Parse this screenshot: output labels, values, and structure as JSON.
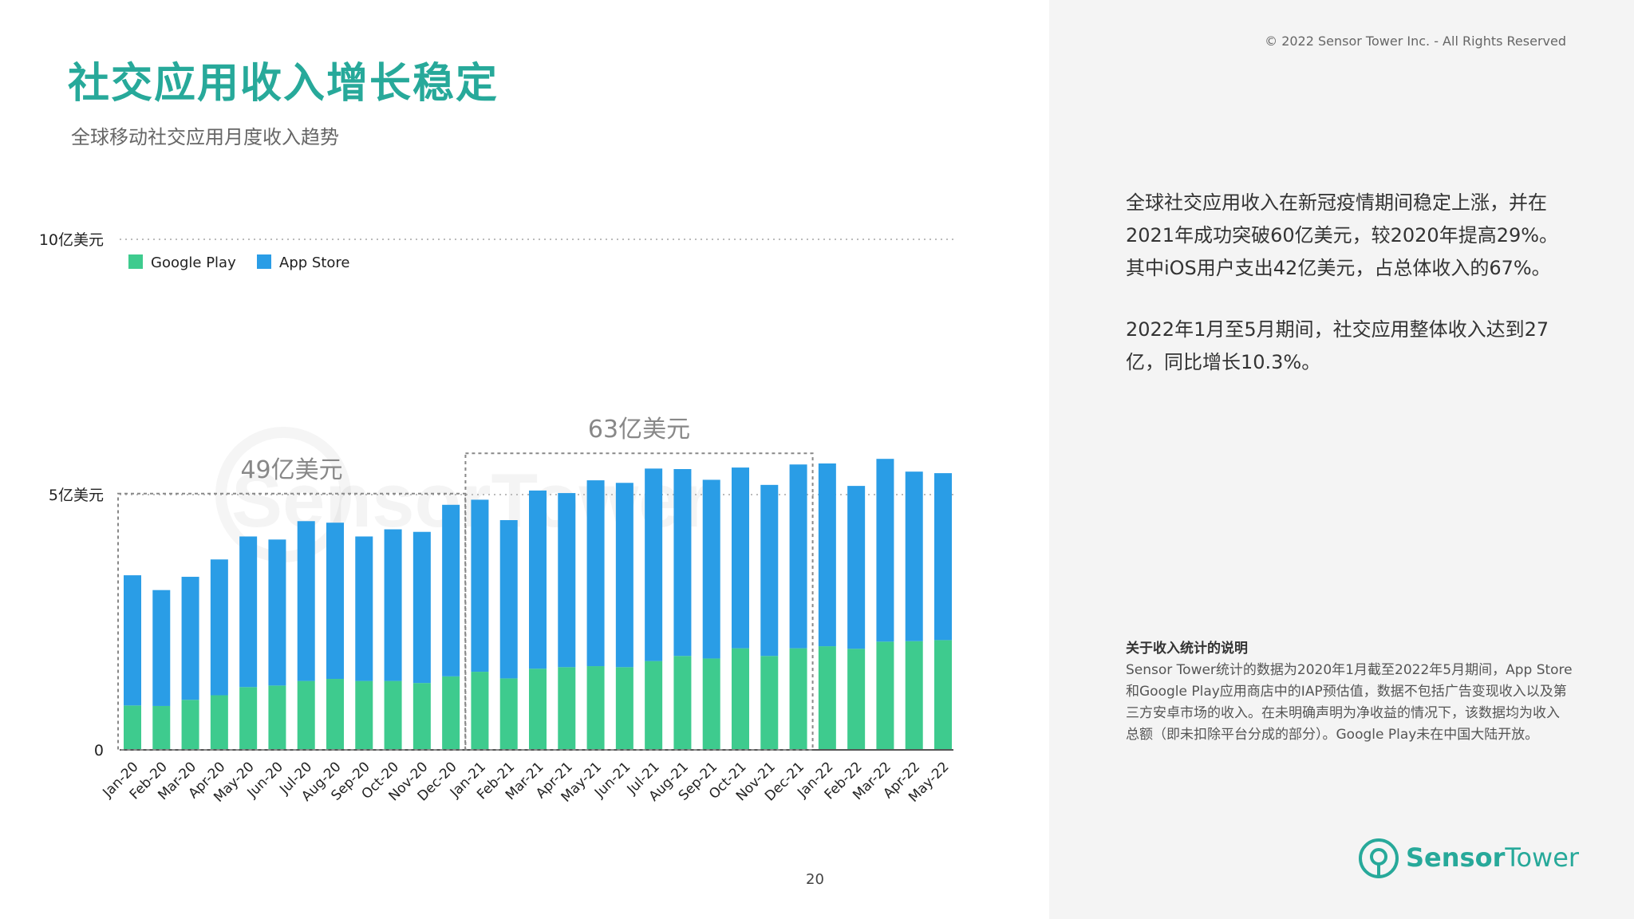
{
  "header": {
    "title": "社交应用收入增长稳定",
    "subtitle": "全球移动社交应用月度收入趋势",
    "copyright": "© 2022 Sensor Tower Inc. - All Rights Reserved"
  },
  "summary": {
    "paragraph_1": "全球社交应用收入在新冠疫情期间稳定上涨，并在2021年成功突破60亿美元，较2020年提高29%。其中iOS用户支出42亿美元，占总体收入的67%。",
    "paragraph_2": "2022年1月至5月期间，社交应用整体收入达到27亿，同比增长10.3%。"
  },
  "note": {
    "title": "关于收入统计的说明",
    "body": "Sensor Tower统计的数据为2020年1月截至2022年5月期间，App Store和Google Play应用商店中的IAP预估值，数据不包括广告变现收入以及第三方安卓市场的收入。在未明确声明为净收益的情况下，该数据均为收入总额（即未扣除平台分成的部分）。Google Play未在中国大陆开放。"
  },
  "footer": {
    "page_number": "20",
    "logo_word_1": "Sensor",
    "logo_word_2": "Tower"
  },
  "colors": {
    "brand": "#27a99a",
    "google_play": "#3ecb8e",
    "app_store": "#2a9de6"
  },
  "watermark": "SensorTower",
  "chart_data": {
    "type": "bar",
    "stacked": true,
    "title": "",
    "xlabel": "",
    "ylabel": "",
    "ylim": [
      0,
      10
    ],
    "y_ticks": [
      {
        "value": 0,
        "label": "0"
      },
      {
        "value": 5,
        "label": "5亿美元"
      },
      {
        "value": 10,
        "label": "10亿美元"
      }
    ],
    "grid": "dotted lines at 5 and 10",
    "legend_position": "top-left",
    "categories": [
      "Jan-20",
      "Feb-20",
      "Mar-20",
      "Apr-20",
      "May-20",
      "Jun-20",
      "Jul-20",
      "Aug-20",
      "Sep-20",
      "Oct-20",
      "Nov-20",
      "Dec-20",
      "Jan-21",
      "Feb-21",
      "Mar-21",
      "Apr-21",
      "May-21",
      "Jun-21",
      "Jul-21",
      "Aug-21",
      "Sep-21",
      "Oct-21",
      "Nov-21",
      "Dec-21",
      "Jan-22",
      "Feb-22",
      "Mar-22",
      "Apr-22",
      "May-22"
    ],
    "series": [
      {
        "name": "Google Play",
        "values": [
          0.87,
          0.86,
          0.98,
          1.07,
          1.23,
          1.26,
          1.35,
          1.39,
          1.35,
          1.35,
          1.31,
          1.44,
          1.53,
          1.4,
          1.59,
          1.62,
          1.64,
          1.62,
          1.74,
          1.84,
          1.79,
          1.99,
          1.84,
          1.99,
          2.03,
          1.98,
          2.12,
          2.13,
          2.15
        ]
      },
      {
        "name": "App Store",
        "values": [
          2.55,
          2.27,
          2.41,
          2.66,
          2.95,
          2.86,
          3.13,
          3.06,
          2.83,
          2.97,
          2.96,
          3.36,
          3.37,
          3.1,
          3.49,
          3.41,
          3.64,
          3.61,
          3.77,
          3.66,
          3.5,
          3.54,
          3.35,
          3.6,
          3.58,
          3.19,
          3.58,
          3.32,
          3.27
        ]
      }
    ],
    "annotations": [
      {
        "text": "49亿美元",
        "start": "Jan-20",
        "end": "Dec-20"
      },
      {
        "text": "63亿美元",
        "start": "Jan-21",
        "end": "Dec-21"
      }
    ]
  }
}
